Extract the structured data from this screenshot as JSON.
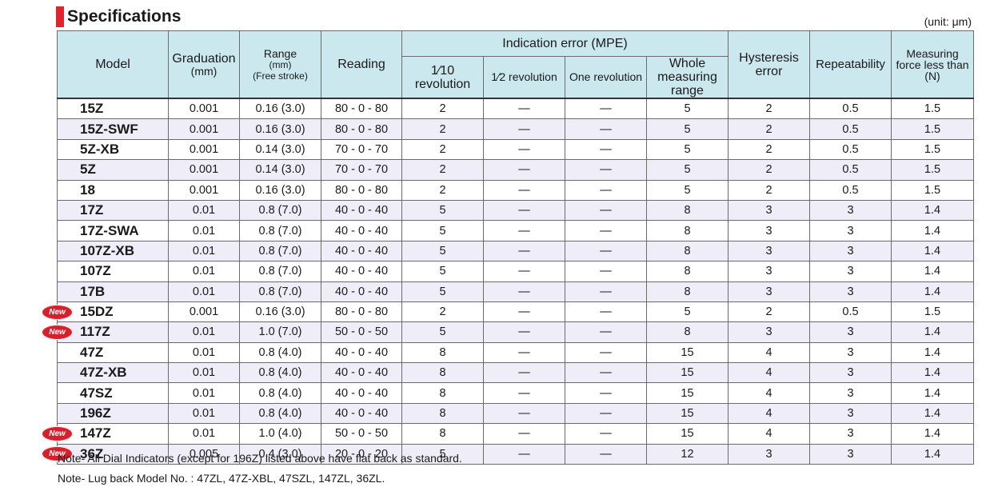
{
  "title": "Specifications",
  "unit": "(unit: μm)",
  "headers": {
    "model": "Model",
    "graduation": "Graduation",
    "graduation_unit": "(mm)",
    "range": "Range",
    "range_unit": "(mm)",
    "range_note": "(Free stroke)",
    "reading": "Reading",
    "indication_error": "Indication error (MPE)",
    "rev_tenth": "1∕10 revolution",
    "rev_half": "1∕2 revolution",
    "rev_one": "One revolution",
    "whole_range_1": "Whole measuring",
    "whole_range_2": "range",
    "hysteresis_1": "Hysteresis",
    "hysteresis_2": "error",
    "repeatability": "Repeatability",
    "force_1": "Measuring",
    "force_2": "force less than",
    "force_3": "(N)"
  },
  "new_badge": "New",
  "rows": [
    {
      "model": "15Z",
      "grad": "0.001",
      "range": "0.16 (3.0)",
      "reading": "80 - 0 - 80",
      "rev10": "2",
      "rev2": "—",
      "rev1": "—",
      "whole": "5",
      "hyst": "2",
      "rep": "0.5",
      "force": "1.5",
      "new": false
    },
    {
      "model": "15Z-SWF",
      "grad": "0.001",
      "range": "0.16 (3.0)",
      "reading": "80 - 0 - 80",
      "rev10": "2",
      "rev2": "—",
      "rev1": "—",
      "whole": "5",
      "hyst": "2",
      "rep": "0.5",
      "force": "1.5",
      "new": false
    },
    {
      "model": "5Z-XB",
      "grad": "0.001",
      "range": "0.14 (3.0)",
      "reading": "70 - 0 - 70",
      "rev10": "2",
      "rev2": "—",
      "rev1": "—",
      "whole": "5",
      "hyst": "2",
      "rep": "0.5",
      "force": "1.5",
      "new": false
    },
    {
      "model": "5Z",
      "grad": "0.001",
      "range": "0.14 (3.0)",
      "reading": "70 - 0 - 70",
      "rev10": "2",
      "rev2": "—",
      "rev1": "—",
      "whole": "5",
      "hyst": "2",
      "rep": "0.5",
      "force": "1.5",
      "new": false
    },
    {
      "model": "18",
      "grad": "0.001",
      "range": "0.16 (3.0)",
      "reading": "80 - 0 - 80",
      "rev10": "2",
      "rev2": "—",
      "rev1": "—",
      "whole": "5",
      "hyst": "2",
      "rep": "0.5",
      "force": "1.5",
      "new": false
    },
    {
      "model": "17Z",
      "grad": "0.01",
      "range": "0.8 (7.0)",
      "reading": "40 - 0 - 40",
      "rev10": "5",
      "rev2": "—",
      "rev1": "—",
      "whole": "8",
      "hyst": "3",
      "rep": "3",
      "force": "1.4",
      "new": false
    },
    {
      "model": "17Z-SWA",
      "grad": "0.01",
      "range": "0.8 (7.0)",
      "reading": "40 - 0 - 40",
      "rev10": "5",
      "rev2": "—",
      "rev1": "—",
      "whole": "8",
      "hyst": "3",
      "rep": "3",
      "force": "1.4",
      "new": false
    },
    {
      "model": "107Z-XB",
      "grad": "0.01",
      "range": "0.8 (7.0)",
      "reading": "40 - 0 - 40",
      "rev10": "5",
      "rev2": "—",
      "rev1": "—",
      "whole": "8",
      "hyst": "3",
      "rep": "3",
      "force": "1.4",
      "new": false
    },
    {
      "model": "107Z",
      "grad": "0.01",
      "range": "0.8 (7.0)",
      "reading": "40 - 0 - 40",
      "rev10": "5",
      "rev2": "—",
      "rev1": "—",
      "whole": "8",
      "hyst": "3",
      "rep": "3",
      "force": "1.4",
      "new": false
    },
    {
      "model": "17B",
      "grad": "0.01",
      "range": "0.8 (7.0)",
      "reading": "40 - 0 - 40",
      "rev10": "5",
      "rev2": "—",
      "rev1": "—",
      "whole": "8",
      "hyst": "3",
      "rep": "3",
      "force": "1.4",
      "new": false
    },
    {
      "model": "15DZ",
      "grad": "0.001",
      "range": "0.16 (3.0)",
      "reading": "80 - 0 - 80",
      "rev10": "2",
      "rev2": "—",
      "rev1": "—",
      "whole": "5",
      "hyst": "2",
      "rep": "0.5",
      "force": "1.5",
      "new": true
    },
    {
      "model": "117Z",
      "grad": "0.01",
      "range": "1.0 (7.0)",
      "reading": "50 - 0 - 50",
      "rev10": "5",
      "rev2": "—",
      "rev1": "—",
      "whole": "8",
      "hyst": "3",
      "rep": "3",
      "force": "1.4",
      "new": true
    },
    {
      "model": "47Z",
      "grad": "0.01",
      "range": "0.8  (4.0)",
      "reading": "40 - 0 - 40",
      "rev10": "8",
      "rev2": "—",
      "rev1": "—",
      "whole": "15",
      "hyst": "4",
      "rep": "3",
      "force": "1.4",
      "new": false
    },
    {
      "model": "47Z-XB",
      "grad": "0.01",
      "range": "0.8  (4.0)",
      "reading": "40 - 0 - 40",
      "rev10": "8",
      "rev2": "—",
      "rev1": "—",
      "whole": "15",
      "hyst": "4",
      "rep": "3",
      "force": "1.4",
      "new": false
    },
    {
      "model": "47SZ",
      "grad": "0.01",
      "range": "0.8  (4.0)",
      "reading": "40 - 0 - 40",
      "rev10": "8",
      "rev2": "—",
      "rev1": "—",
      "whole": "15",
      "hyst": "4",
      "rep": "3",
      "force": "1.4",
      "new": false
    },
    {
      "model": "196Z",
      "grad": "0.01",
      "range": "0.8  (4.0)",
      "reading": "40 - 0 - 40",
      "rev10": "8",
      "rev2": "—",
      "rev1": "—",
      "whole": "15",
      "hyst": "4",
      "rep": "3",
      "force": "1.4",
      "new": false
    },
    {
      "model": "147Z",
      "grad": "0.01",
      "range": "1.0  (4.0)",
      "reading": "50 - 0 - 50",
      "rev10": "8",
      "rev2": "—",
      "rev1": "—",
      "whole": "15",
      "hyst": "4",
      "rep": "3",
      "force": "1.4",
      "new": true
    },
    {
      "model": "36Z",
      "grad": "0.005",
      "range": "0.4  (3.0)",
      "reading": "20 - 0 - 20",
      "rev10": "5",
      "rev2": "—",
      "rev1": "—",
      "whole": "12",
      "hyst": "3",
      "rep": "3",
      "force": "1.4",
      "new": true
    }
  ],
  "notes": [
    "Note- All Dial Indicators (except for 196Z) listed above have flat back as standard.",
    "Note- Lug back Model No. : 47ZL, 47Z-XBL, 47SZL, 147ZL, 36ZL."
  ],
  "colors": {
    "accent": "#e0232f",
    "header_bg": "#cbe8ef",
    "alt_row": "#efeef8",
    "badge": "#d6202c"
  }
}
